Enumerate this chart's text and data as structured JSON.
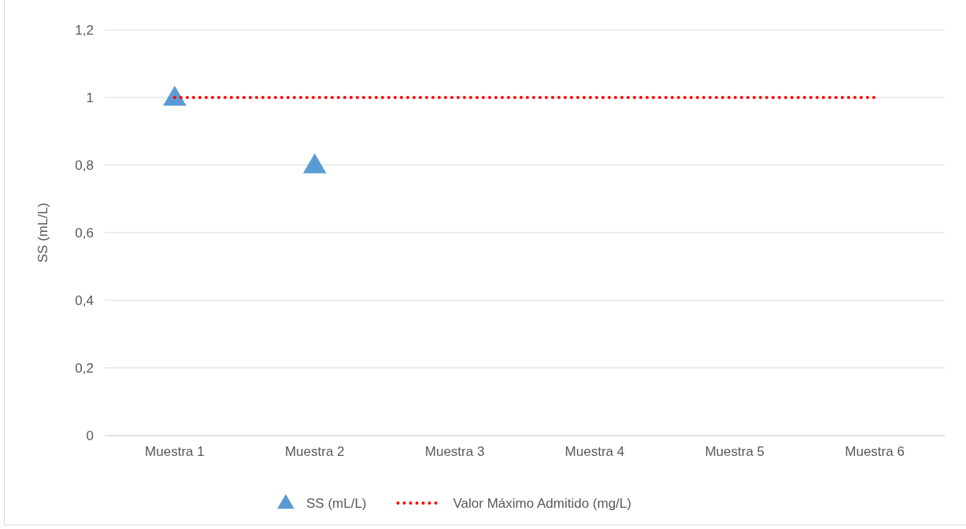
{
  "chart_data": {
    "type": "scatter",
    "ylabel": "SS (mL/L)",
    "categories": [
      "Muestra 1",
      "Muestra 2",
      "Muestra 3",
      "Muestra 4",
      "Muestra 5",
      "Muestra 6"
    ],
    "series": [
      {
        "name": "SS (mL/L)",
        "color": "#5b9bd5",
        "marker": "triangle",
        "values": [
          1,
          0.8,
          null,
          null,
          null,
          null
        ]
      },
      {
        "name": "Valor Máximo Admitido (mg/L)",
        "type": "line",
        "color": "#ff0000",
        "line_style": "dotted",
        "marker": "none",
        "values": [
          1,
          1,
          1,
          1,
          1,
          1
        ]
      }
    ],
    "ylim": [
      0,
      1.2
    ],
    "yticks": [
      0,
      {
        "value": 0.2,
        "label": "0,2"
      },
      {
        "value": 0.4,
        "label": "0,4"
      },
      {
        "value": 0.6,
        "label": "0,6"
      },
      {
        "value": 0.8,
        "label": "0,8"
      },
      1,
      {
        "value": 1.2,
        "label": "1,2"
      }
    ],
    "grid": "y",
    "legend": "bottom"
  }
}
